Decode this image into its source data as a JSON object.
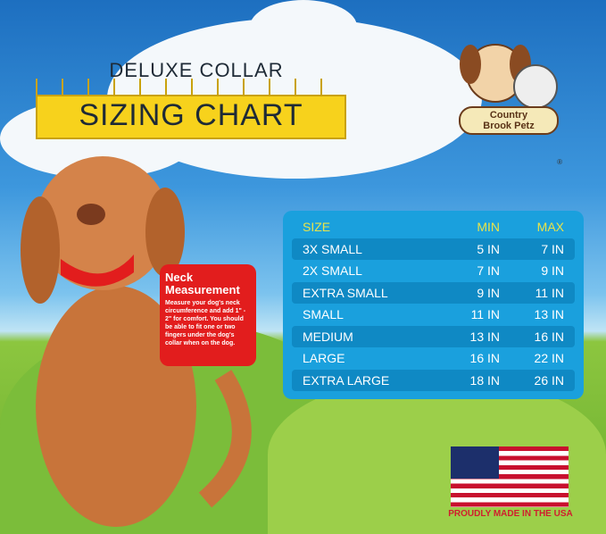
{
  "heading": {
    "line1": "DELUXE COLLAR",
    "line2": "SIZING CHART"
  },
  "logo": {
    "text_line1": "Country",
    "text_line2": "Brook Petz",
    "mark": "®"
  },
  "neck": {
    "title_line1": "Neck",
    "title_line2": "Measurement",
    "body": "Measure your dog's neck circumference and add 1\" - 2\" for comfort. You should be able to fit one or two fingers under the dog's collar when on the dog."
  },
  "table": {
    "headers": [
      "SIZE",
      "MIN",
      "MAX"
    ],
    "rows": [
      [
        "3X SMALL",
        "5 IN",
        "7 IN"
      ],
      [
        "2X SMALL",
        "7 IN",
        "9 IN"
      ],
      [
        "EXTRA SMALL",
        "9 IN",
        "11 IN"
      ],
      [
        "SMALL",
        "11 IN",
        "13 IN"
      ],
      [
        "MEDIUM",
        "13 IN",
        "16 IN"
      ],
      [
        "LARGE",
        "16 IN",
        "22 IN"
      ],
      [
        "EXTRA LARGE",
        "18 IN",
        "26 IN"
      ]
    ]
  },
  "footer": {
    "made_in": "PROUDLY MADE IN THE USA"
  },
  "colors": {
    "table_bg": "#1aa0dd",
    "header_text": "#e8e34a",
    "ruler": "#f7d21c",
    "neck_box": "#e21d1d"
  }
}
